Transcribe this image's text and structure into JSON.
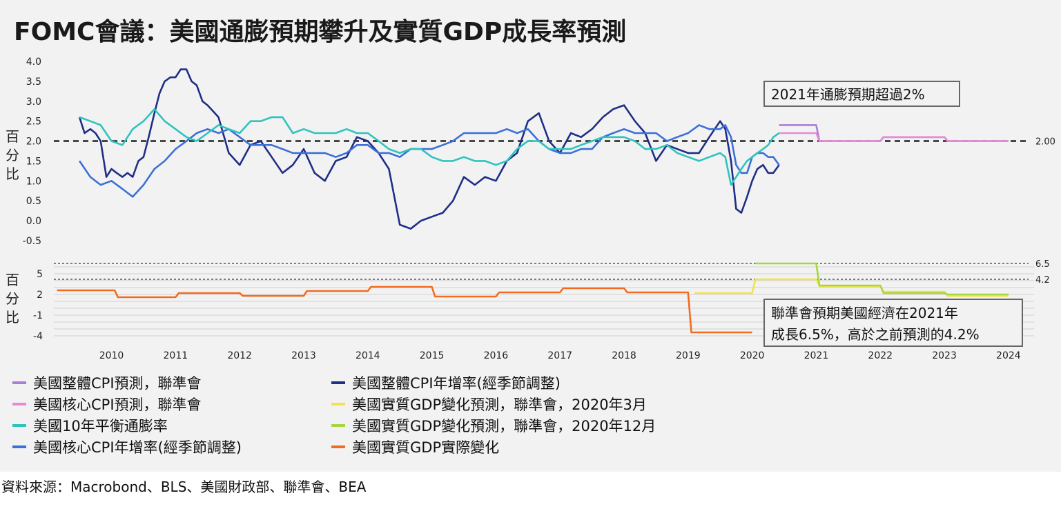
{
  "title": "FOMC會議：美國通膨預期攀升及實質GDP成長率預測",
  "source": "資料來源：Macrobond、BLS、美國財政部、聯準會、BEA",
  "colors": {
    "headline_forecast": "#a97fd6",
    "core_forecast": "#e58ad6",
    "breakeven": "#2ec4bd",
    "core_cpi": "#3c6fd8",
    "headline_cpi": "#1f2e86",
    "gdp_mar2020": "#f2e34c",
    "gdp_dec2020": "#a9d640",
    "gdp_actual": "#f26b21",
    "reference": "#222222"
  },
  "chart_data": [
    {
      "id": "inflation",
      "type": "line",
      "ylabel": "百分比",
      "ylim": [
        -0.6,
        4.0
      ],
      "yticks": [
        "4.0",
        "3.5",
        "3.0",
        "2.5",
        "2.0",
        "1.5",
        "1.0",
        "0.5",
        "0.0",
        "-0.5"
      ],
      "ytick_values": [
        4.0,
        3.5,
        3.0,
        2.5,
        2.0,
        1.5,
        1.0,
        0.5,
        0.0,
        -0.5
      ],
      "reference_line": {
        "value": 2.0,
        "label": "2.00"
      },
      "annotation": "2021年通膨預期超過2%",
      "series": [
        {
          "key": "headline_cpi",
          "name": "美國整體CPI年增率(經季節調整)",
          "x": [
            2010.0,
            2010.08,
            2010.17,
            2010.25,
            2010.33,
            2010.42,
            2010.5,
            2010.58,
            2010.67,
            2010.75,
            2010.83,
            2010.92,
            2011.0,
            2011.08,
            2011.17,
            2011.25,
            2011.33,
            2011.42,
            2011.5,
            2011.58,
            2011.67,
            2011.75,
            2011.83,
            2011.92,
            2012.0,
            2012.17,
            2012.33,
            2012.5,
            2012.67,
            2012.83,
            2013.0,
            2013.17,
            2013.33,
            2013.5,
            2013.67,
            2013.83,
            2014.0,
            2014.17,
            2014.33,
            2014.5,
            2014.67,
            2014.83,
            2015.0,
            2015.17,
            2015.33,
            2015.5,
            2015.67,
            2015.83,
            2016.0,
            2016.17,
            2016.33,
            2016.5,
            2016.67,
            2016.83,
            2017.0,
            2017.17,
            2017.33,
            2017.5,
            2017.67,
            2017.83,
            2018.0,
            2018.17,
            2018.33,
            2018.5,
            2018.67,
            2018.83,
            2019.0,
            2019.17,
            2019.33,
            2019.5,
            2019.67,
            2019.83,
            2020.0,
            2020.08,
            2020.17,
            2020.25,
            2020.33,
            2020.42,
            2020.5,
            2020.58,
            2020.67,
            2020.75,
            2020.83,
            2020.92
          ],
          "values": [
            2.6,
            2.2,
            2.3,
            2.2,
            2.0,
            1.1,
            1.3,
            1.2,
            1.1,
            1.2,
            1.1,
            1.5,
            1.6,
            2.1,
            2.7,
            3.2,
            3.5,
            3.6,
            3.6,
            3.8,
            3.8,
            3.5,
            3.4,
            3.0,
            2.9,
            2.6,
            1.7,
            1.4,
            1.9,
            2.0,
            1.6,
            1.2,
            1.4,
            1.8,
            1.2,
            1.0,
            1.5,
            1.6,
            2.1,
            2.0,
            1.7,
            1.3,
            -0.1,
            -0.2,
            0.0,
            0.1,
            0.2,
            0.5,
            1.1,
            0.9,
            1.1,
            1.0,
            1.5,
            1.7,
            2.5,
            2.7,
            2.0,
            1.7,
            2.2,
            2.1,
            2.3,
            2.6,
            2.8,
            2.9,
            2.5,
            2.2,
            1.5,
            1.9,
            1.8,
            1.7,
            1.7,
            2.1,
            2.5,
            2.3,
            1.5,
            0.3,
            0.2,
            0.6,
            1.0,
            1.3,
            1.4,
            1.2,
            1.2,
            1.4
          ]
        },
        {
          "key": "core_cpi",
          "name": "美國核心CPI年增率(經季節調整)",
          "x": [
            2010.0,
            2010.17,
            2010.33,
            2010.5,
            2010.67,
            2010.83,
            2011.0,
            2011.17,
            2011.33,
            2011.5,
            2011.67,
            2011.83,
            2012.0,
            2012.17,
            2012.33,
            2012.5,
            2012.67,
            2012.83,
            2013.0,
            2013.17,
            2013.33,
            2013.5,
            2013.67,
            2013.83,
            2014.0,
            2014.17,
            2014.33,
            2014.5,
            2014.67,
            2014.83,
            2015.0,
            2015.17,
            2015.33,
            2015.5,
            2015.67,
            2015.83,
            2016.0,
            2016.17,
            2016.33,
            2016.5,
            2016.67,
            2016.83,
            2017.0,
            2017.17,
            2017.33,
            2017.5,
            2017.67,
            2017.83,
            2018.0,
            2018.17,
            2018.33,
            2018.5,
            2018.67,
            2018.83,
            2019.0,
            2019.17,
            2019.33,
            2019.5,
            2019.67,
            2019.83,
            2020.0,
            2020.08,
            2020.17,
            2020.25,
            2020.33,
            2020.42,
            2020.5,
            2020.58,
            2020.67,
            2020.75,
            2020.83,
            2020.92
          ],
          "values": [
            1.5,
            1.1,
            0.9,
            1.0,
            0.8,
            0.6,
            0.9,
            1.3,
            1.5,
            1.8,
            2.0,
            2.2,
            2.3,
            2.2,
            2.3,
            2.1,
            1.9,
            1.9,
            1.9,
            1.8,
            1.7,
            1.7,
            1.7,
            1.7,
            1.6,
            1.7,
            1.9,
            1.9,
            1.7,
            1.7,
            1.6,
            1.8,
            1.8,
            1.8,
            1.9,
            2.0,
            2.2,
            2.2,
            2.2,
            2.2,
            2.3,
            2.2,
            2.3,
            2.0,
            1.8,
            1.7,
            1.7,
            1.8,
            1.8,
            2.1,
            2.2,
            2.3,
            2.2,
            2.2,
            2.2,
            2.0,
            2.1,
            2.2,
            2.4,
            2.3,
            2.3,
            2.4,
            2.1,
            1.4,
            1.2,
            1.2,
            1.6,
            1.7,
            1.7,
            1.6,
            1.6,
            1.4
          ]
        },
        {
          "key": "breakeven",
          "name": "美國10年平衡通膨率",
          "x": [
            2010.0,
            2010.17,
            2010.33,
            2010.5,
            2010.67,
            2010.83,
            2011.0,
            2011.17,
            2011.33,
            2011.5,
            2011.67,
            2011.83,
            2012.0,
            2012.17,
            2012.33,
            2012.5,
            2012.67,
            2012.83,
            2013.0,
            2013.17,
            2013.33,
            2013.5,
            2013.67,
            2013.83,
            2014.0,
            2014.17,
            2014.33,
            2014.5,
            2014.67,
            2014.83,
            2015.0,
            2015.17,
            2015.33,
            2015.5,
            2015.67,
            2015.83,
            2016.0,
            2016.17,
            2016.33,
            2016.5,
            2016.67,
            2016.83,
            2017.0,
            2017.17,
            2017.33,
            2017.5,
            2017.67,
            2017.83,
            2018.0,
            2018.17,
            2018.33,
            2018.5,
            2018.67,
            2018.83,
            2019.0,
            2019.17,
            2019.33,
            2019.5,
            2019.67,
            2019.83,
            2020.0,
            2020.08,
            2020.17,
            2020.25,
            2020.33,
            2020.42,
            2020.5,
            2020.58,
            2020.67,
            2020.75,
            2020.83,
            2020.92
          ],
          "values": [
            2.6,
            2.5,
            2.4,
            2.0,
            1.9,
            2.3,
            2.5,
            2.8,
            2.5,
            2.3,
            2.1,
            2.0,
            2.2,
            2.4,
            2.3,
            2.2,
            2.5,
            2.5,
            2.6,
            2.6,
            2.2,
            2.3,
            2.2,
            2.2,
            2.2,
            2.3,
            2.2,
            2.2,
            2.0,
            1.8,
            1.7,
            1.8,
            1.8,
            1.6,
            1.5,
            1.5,
            1.6,
            1.5,
            1.5,
            1.4,
            1.5,
            1.8,
            2.0,
            2.0,
            1.8,
            1.8,
            1.8,
            1.9,
            2.0,
            2.1,
            2.1,
            2.1,
            2.0,
            1.8,
            1.8,
            1.9,
            1.7,
            1.6,
            1.5,
            1.6,
            1.7,
            1.6,
            0.9,
            1.1,
            1.3,
            1.5,
            1.6,
            1.7,
            1.8,
            1.9,
            2.1,
            2.2
          ]
        },
        {
          "key": "headline_forecast",
          "name": "美國整體CPI預測，聯準會",
          "x": [
            2020.92,
            2021.5,
            2021.55,
            2022.0,
            2022.5,
            2022.55,
            2023.0,
            2023.5,
            2023.55,
            2024.5
          ],
          "values": [
            2.4,
            2.4,
            2.0,
            2.0,
            2.0,
            2.1,
            2.1,
            2.1,
            2.0,
            2.0
          ]
        },
        {
          "key": "core_forecast",
          "name": "美國核心CPI預測，聯準會",
          "x": [
            2020.92,
            2021.5,
            2021.55,
            2022.0,
            2022.5,
            2022.55,
            2023.0,
            2023.5,
            2023.55,
            2024.5
          ],
          "values": [
            2.2,
            2.2,
            2.0,
            2.0,
            2.0,
            2.1,
            2.1,
            2.1,
            2.0,
            2.0
          ]
        }
      ]
    },
    {
      "id": "gdp",
      "type": "line",
      "ylabel": "百分比",
      "ylim": [
        -4.5,
        6.9
      ],
      "yticks": [
        "5",
        "2",
        "-1",
        "-4"
      ],
      "ytick_values": [
        5,
        2,
        -1,
        -4
      ],
      "reference_lines": [
        {
          "value": 6.5,
          "label": "6.5"
        },
        {
          "value": 4.2,
          "label": "4.2"
        }
      ],
      "annotation": [
        "聯準會預期美國經濟在2021年",
        "成長6.5%，高於之前預測的4.2%"
      ],
      "xticks": [
        "2010",
        "2011",
        "2012",
        "2013",
        "2014",
        "2015",
        "2016",
        "2017",
        "2018",
        "2019",
        "2020",
        "2021",
        "2022",
        "2023",
        "2024"
      ],
      "xtick_values": [
        2010,
        2011,
        2012,
        2013,
        2014,
        2015,
        2016,
        2017,
        2018,
        2019,
        2020,
        2021,
        2022,
        2023,
        2024
      ],
      "xlim": [
        2009.6,
        2024.9
      ],
      "series": [
        {
          "key": "gdp_actual",
          "name": "美國實質GDP實際變化",
          "x": [
            2009.65,
            2010.55,
            2010.6,
            2011.5,
            2011.55,
            2012.5,
            2012.55,
            2013.5,
            2013.55,
            2014.5,
            2014.55,
            2015.5,
            2015.55,
            2016.5,
            2016.55,
            2017.5,
            2017.55,
            2018.5,
            2018.55,
            2019.5,
            2019.55,
            2020.5
          ],
          "values": [
            2.6,
            2.6,
            1.6,
            1.6,
            2.2,
            2.2,
            1.8,
            1.8,
            2.5,
            2.5,
            3.1,
            3.1,
            1.7,
            1.7,
            2.3,
            2.3,
            2.9,
            2.9,
            2.3,
            2.3,
            -3.5,
            -3.5
          ]
        },
        {
          "key": "gdp_mar2020",
          "name": "美國實質GDP變化預測，聯準會，2020年3月",
          "x": [
            2019.6,
            2020.5,
            2020.55,
            2021.5,
            2021.55,
            2022.5,
            2022.55,
            2023.5,
            2023.55,
            2024.5
          ],
          "values": [
            2.2,
            2.2,
            4.2,
            4.2,
            3.2,
            3.2,
            2.4,
            2.4,
            1.8,
            1.8
          ]
        },
        {
          "key": "gdp_dec2020",
          "name": "美國實質GDP變化預測，聯準會，2020年12月",
          "x": [
            2020.55,
            2021.5,
            2021.55,
            2022.5,
            2022.55,
            2023.5,
            2023.55,
            2024.5
          ],
          "values": [
            6.5,
            6.5,
            3.3,
            3.3,
            2.2,
            2.2,
            2.0,
            2.0
          ]
        }
      ]
    }
  ],
  "legend": [
    {
      "key": "headline_forecast",
      "label": "美國整體CPI預測，聯準會"
    },
    {
      "key": "core_forecast",
      "label": "美國核心CPI預測，聯準會"
    },
    {
      "key": "breakeven",
      "label": "美國10年平衡通膨率"
    },
    {
      "key": "core_cpi",
      "label": "美國核心CPI年增率(經季節調整)"
    },
    {
      "key": "headline_cpi",
      "label": "美國整體CPI年增率(經季節調整)"
    },
    {
      "key": "gdp_mar2020",
      "label": "美國實質GDP變化預測，聯準會，2020年3月"
    },
    {
      "key": "gdp_dec2020",
      "label": "美國實質GDP變化預測，聯準會，2020年12月"
    },
    {
      "key": "gdp_actual",
      "label": "美國實質GDP實際變化"
    }
  ]
}
